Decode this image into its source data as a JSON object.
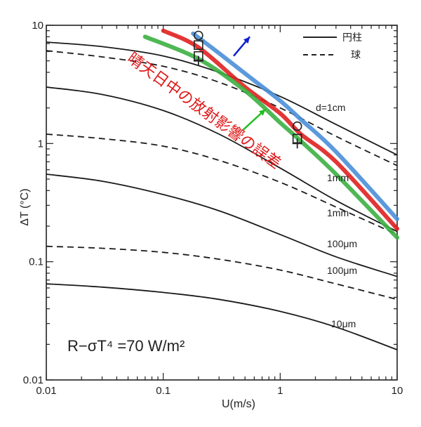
{
  "chart_data": {
    "type": "line",
    "x_scale": "log",
    "y_scale": "log",
    "xlim": [
      0.01,
      10
    ],
    "ylim": [
      0.01,
      10
    ],
    "xlabel": "U(m/s)",
    "ylabel": "ΔT (°C)",
    "x_ticks": [
      "0.01",
      "0.1",
      "1",
      "10"
    ],
    "y_ticks": [
      "0.01",
      "0.1",
      "1",
      "10"
    ],
    "equation": "R−σT⁴ =70 W/m²",
    "legend": {
      "placement": "top-right",
      "solid": "円柱",
      "dashed": "球"
    },
    "annotation": "晴天日中の放射影響の誤差",
    "series": [
      {
        "name": "d=1cm",
        "style": "solid",
        "x": [
          0.01,
          0.03,
          0.1,
          0.3,
          1,
          3,
          10
        ],
        "y": [
          7.2,
          6.6,
          5.5,
          4.0,
          2.5,
          1.45,
          0.8
        ]
      },
      {
        "name": "",
        "style": "dashed",
        "x": [
          0.01,
          0.03,
          0.1,
          0.3,
          1,
          3,
          10
        ],
        "y": [
          6.1,
          5.4,
          4.5,
          3.3,
          2.0,
          1.15,
          0.65
        ]
      },
      {
        "name": "1mm",
        "style": "solid",
        "x": [
          0.01,
          0.03,
          0.1,
          0.3,
          1,
          3,
          10
        ],
        "y": [
          3.0,
          2.6,
          1.9,
          1.2,
          0.62,
          0.33,
          0.18
        ]
      },
      {
        "name": "1mm",
        "style": "dashed",
        "x": [
          0.01,
          0.03,
          0.1,
          0.3,
          1,
          3,
          10
        ],
        "y": [
          1.2,
          1.1,
          0.95,
          0.72,
          0.47,
          0.29,
          0.17
        ]
      },
      {
        "name": "100μm",
        "style": "solid",
        "x": [
          0.01,
          0.03,
          0.1,
          0.3,
          1,
          3,
          10
        ],
        "y": [
          0.55,
          0.48,
          0.37,
          0.27,
          0.17,
          0.11,
          0.075
        ]
      },
      {
        "name": "100μm",
        "style": "dashed",
        "x": [
          0.01,
          0.03,
          0.1,
          0.3,
          1,
          3,
          10
        ],
        "y": [
          0.135,
          0.13,
          0.12,
          0.105,
          0.085,
          0.065,
          0.048
        ]
      },
      {
        "name": "10μm",
        "style": "solid",
        "x": [
          0.01,
          0.03,
          0.1,
          0.3,
          1,
          3,
          10
        ],
        "y": [
          0.065,
          0.061,
          0.055,
          0.048,
          0.038,
          0.028,
          0.018
        ]
      }
    ],
    "measured": [
      {
        "color": "#4a8fd8",
        "x": [
          0.18,
          0.3,
          0.6,
          1.0,
          1.5,
          3,
          10
        ],
        "y": [
          8.5,
          5.8,
          3.4,
          2.3,
          1.6,
          0.85,
          0.23
        ]
      },
      {
        "color": "#e02020",
        "x": [
          0.1,
          0.2,
          0.5,
          1.0,
          1.5,
          3,
          10
        ],
        "y": [
          9.0,
          6.5,
          3.0,
          1.8,
          1.2,
          0.7,
          0.19
        ]
      },
      {
        "color": "#3cb043",
        "x": [
          0.07,
          0.2,
          0.5,
          1.0,
          1.5,
          3,
          10
        ],
        "y": [
          8.0,
          5.2,
          2.8,
          1.5,
          1.05,
          0.55,
          0.16
        ]
      }
    ],
    "markers": [
      {
        "shape": "circle",
        "x": 0.2,
        "y": 8.2
      },
      {
        "shape": "square",
        "x": 0.2,
        "y": 6.8
      },
      {
        "shape": "square",
        "x": 0.2,
        "y": 5.5
      },
      {
        "shape": "plus",
        "x": 0.2,
        "y": 5.0
      },
      {
        "shape": "circle",
        "x": 1.4,
        "y": 1.4
      },
      {
        "shape": "square",
        "x": 1.4,
        "y": 1.1
      },
      {
        "shape": "plus",
        "x": 1.4,
        "y": 1.0
      }
    ],
    "arrows": [
      {
        "color": "#1020d0",
        "from": [
          0.4,
          5.5
        ],
        "to": [
          0.55,
          8.0
        ]
      },
      {
        "color": "#20c020",
        "from": [
          0.48,
          1.3
        ],
        "to": [
          0.75,
          1.95
        ]
      }
    ]
  }
}
